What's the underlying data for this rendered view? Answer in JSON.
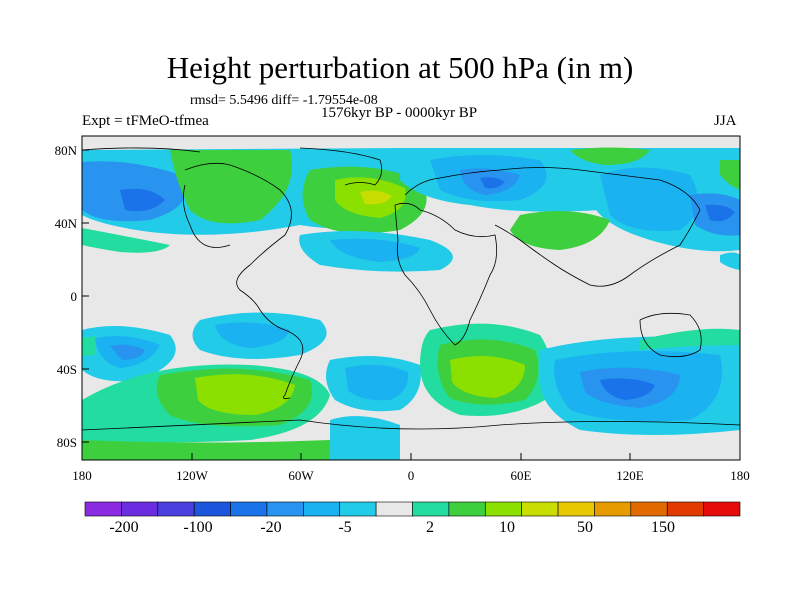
{
  "title": "Height perturbation at 500 hPa (in m)",
  "stats": "rmsd= 5.5496 diff= -1.79554e-08",
  "period": "1576kyr BP - 0000kyr BP",
  "experiment": "Expt = tFMeO-tfmea",
  "season": "JJA",
  "lat_labels": [
    "80N",
    "40N",
    "0",
    "40S",
    "80S"
  ],
  "lon_labels": [
    "180",
    "120W",
    "60W",
    "0",
    "60E",
    "120E",
    "180"
  ],
  "colorbar": {
    "labels": [
      "-200",
      "-100",
      "-20",
      "-5",
      "2",
      "10",
      "50",
      "150"
    ],
    "colors": [
      "#8a2be2",
      "#6a2ee0",
      "#4b3fe0",
      "#1d55dd",
      "#1a73e8",
      "#2894f0",
      "#1ab2f0",
      "#22cce8",
      "#e8e8e8",
      "#22dca0",
      "#3ecf3e",
      "#8ce000",
      "#c8dd00",
      "#e8c800",
      "#e69b00",
      "#e26a00",
      "#e23a00",
      "#e60a0a"
    ]
  },
  "map_colors": {
    "ocean": "#e8e8e8",
    "coast": "#000000"
  }
}
